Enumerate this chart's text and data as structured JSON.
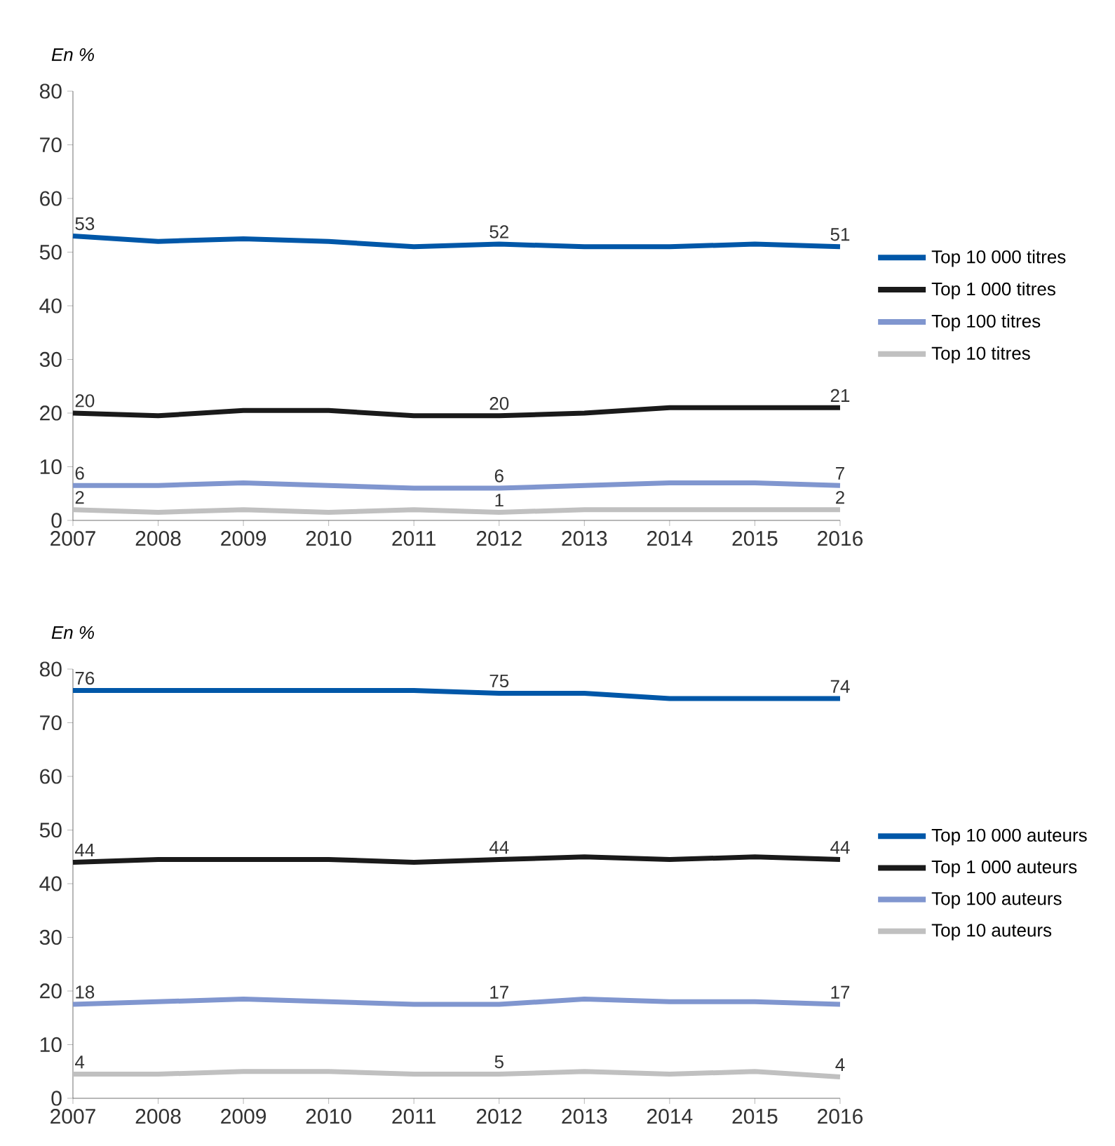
{
  "chart_data": [
    {
      "type": "line",
      "ylabel": "En %",
      "x": [
        2007,
        2008,
        2009,
        2010,
        2011,
        2012,
        2013,
        2014,
        2015,
        2016
      ],
      "xlim": [
        2007,
        2016
      ],
      "xticks": [
        2007,
        2008,
        2009,
        2010,
        2011,
        2012,
        2013,
        2014,
        2015,
        2016
      ],
      "ylim": [
        0,
        80
      ],
      "yticks": [
        0,
        10,
        20,
        30,
        40,
        50,
        60,
        70,
        80
      ],
      "legend": "right",
      "series": [
        {
          "name": "Top 10 000 titres",
          "color": "#0057a8",
          "values": [
            53,
            52,
            52.5,
            52,
            51,
            51.5,
            51,
            51,
            51.5,
            51
          ],
          "value_labels": [
            "53",
            null,
            null,
            null,
            null,
            "52",
            null,
            null,
            null,
            "51"
          ]
        },
        {
          "name": "Top 1 000 titres",
          "color": "#1a1a1a",
          "values": [
            20,
            19.5,
            20.5,
            20.5,
            19.5,
            19.5,
            20,
            21,
            21,
            21
          ],
          "value_labels": [
            "20",
            null,
            null,
            null,
            null,
            "20",
            null,
            null,
            null,
            "21"
          ]
        },
        {
          "name": "Top 100 titres",
          "color": "#8096cf",
          "values": [
            6.5,
            6.5,
            7,
            6.5,
            6,
            6,
            6.5,
            7,
            7,
            6.5
          ],
          "value_labels": [
            "6",
            null,
            null,
            null,
            null,
            "6",
            null,
            null,
            null,
            "7"
          ]
        },
        {
          "name": "Top 10 titres",
          "color": "#c0c0c0",
          "values": [
            2,
            1.5,
            2,
            1.5,
            2,
            1.5,
            2,
            2,
            2,
            2
          ],
          "value_labels": [
            "2",
            null,
            null,
            null,
            null,
            "1",
            null,
            null,
            null,
            "2"
          ]
        }
      ]
    },
    {
      "type": "line",
      "ylabel": "En %",
      "x": [
        2007,
        2008,
        2009,
        2010,
        2011,
        2012,
        2013,
        2014,
        2015,
        2016
      ],
      "xlim": [
        2007,
        2016
      ],
      "xticks": [
        2007,
        2008,
        2009,
        2010,
        2011,
        2012,
        2013,
        2014,
        2015,
        2016
      ],
      "ylim": [
        0,
        80
      ],
      "yticks": [
        0,
        10,
        20,
        30,
        40,
        50,
        60,
        70,
        80
      ],
      "legend": "right",
      "series": [
        {
          "name": "Top 10 000 auteurs",
          "color": "#0057a8",
          "values": [
            76,
            76,
            76,
            76,
            76,
            75.5,
            75.5,
            74.5,
            74.5,
            74.5
          ],
          "value_labels": [
            "76",
            null,
            null,
            null,
            null,
            "75",
            null,
            null,
            null,
            "74"
          ]
        },
        {
          "name": "Top 1 000 auteurs",
          "color": "#1a1a1a",
          "values": [
            44,
            44.5,
            44.5,
            44.5,
            44,
            44.5,
            45,
            44.5,
            45,
            44.5
          ],
          "value_labels": [
            "44",
            null,
            null,
            null,
            null,
            "44",
            null,
            null,
            null,
            "44"
          ]
        },
        {
          "name": "Top 100 auteurs",
          "color": "#8096cf",
          "values": [
            17.5,
            18,
            18.5,
            18,
            17.5,
            17.5,
            18.5,
            18,
            18,
            17.5
          ],
          "value_labels": [
            "18",
            null,
            null,
            null,
            null,
            "17",
            null,
            null,
            null,
            "17"
          ]
        },
        {
          "name": "Top 10 auteurs",
          "color": "#c0c0c0",
          "values": [
            4.5,
            4.5,
            5,
            5,
            4.5,
            4.5,
            5,
            4.5,
            5,
            4
          ],
          "value_labels": [
            "4",
            null,
            null,
            null,
            null,
            "5",
            null,
            null,
            null,
            "4"
          ]
        }
      ]
    }
  ]
}
